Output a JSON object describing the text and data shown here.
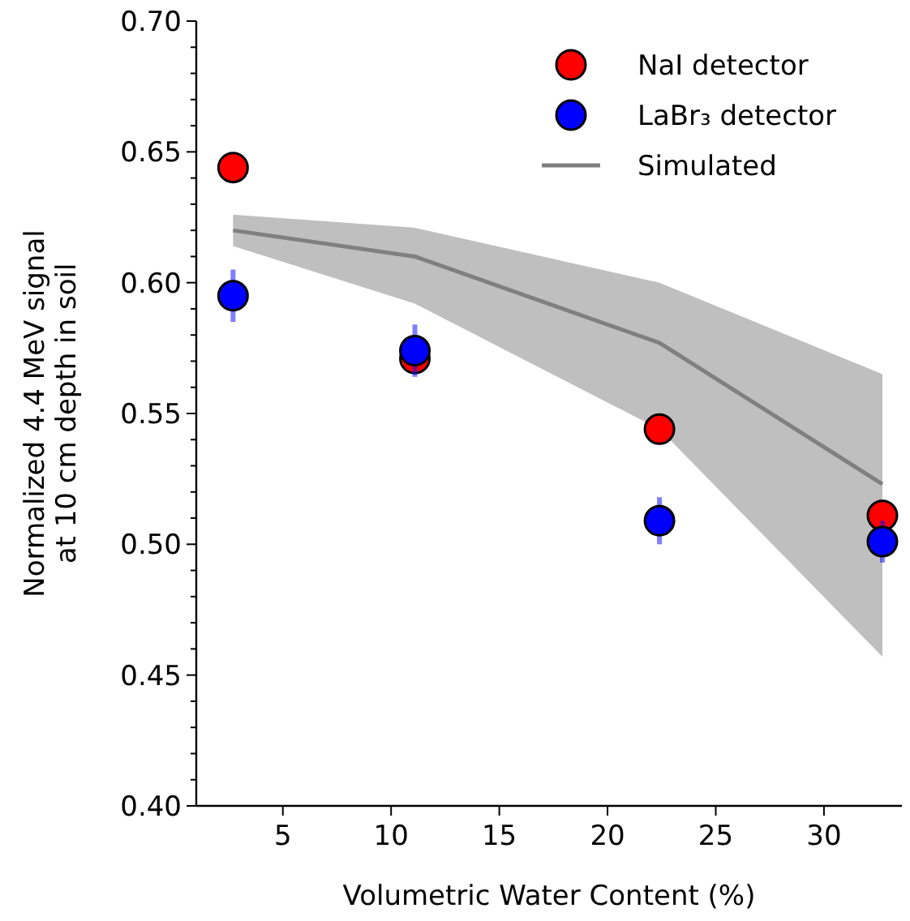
{
  "chart_data": {
    "type": "scatter",
    "xlabel": "Volumetric Water Content (%)",
    "ylabel": "Normalized 4.4 MeV signal\nat 10 cm depth in soil",
    "xlim": [
      1,
      33.6
    ],
    "ylim": [
      0.4,
      0.7
    ],
    "xticks": [
      5,
      10,
      15,
      20,
      25,
      30
    ],
    "yticks": [
      {
        "value": 0.4,
        "label": "0.40"
      },
      {
        "value": 0.41,
        "label": null
      },
      {
        "value": 0.42,
        "label": null
      },
      {
        "value": 0.43,
        "label": null
      },
      {
        "value": 0.44,
        "label": null
      },
      0.45,
      {
        "value": 0.46,
        "label": null
      },
      {
        "value": 0.47,
        "label": null
      },
      {
        "value": 0.48,
        "label": null
      },
      {
        "value": 0.49,
        "label": null
      },
      {
        "value": 0.5,
        "label": "0.50"
      },
      {
        "value": 0.51,
        "label": null
      },
      {
        "value": 0.52,
        "label": null
      },
      {
        "value": 0.53,
        "label": null
      },
      {
        "value": 0.54,
        "label": null
      },
      0.55,
      {
        "value": 0.56,
        "label": null
      },
      {
        "value": 0.57,
        "label": null
      },
      {
        "value": 0.58,
        "label": null
      },
      {
        "value": 0.59,
        "label": null
      },
      {
        "value": 0.6,
        "label": "0.60"
      },
      {
        "value": 0.61,
        "label": null
      },
      {
        "value": 0.62,
        "label": null
      },
      {
        "value": 0.63,
        "label": null
      },
      {
        "value": 0.64,
        "label": null
      },
      0.65,
      {
        "value": 0.66,
        "label": null
      },
      {
        "value": 0.67,
        "label": null
      },
      {
        "value": 0.68,
        "label": null
      },
      {
        "value": 0.69,
        "label": null
      },
      {
        "value": 0.7,
        "label": "0.70"
      }
    ],
    "legend": "top right",
    "marker": "circle",
    "grid": false,
    "series": [
      {
        "name": "NaI detector",
        "color": "#ff0000",
        "x": [
          2.7,
          11.1,
          22.4,
          32.7
        ],
        "values": [
          0.644,
          0.571,
          0.544,
          0.511
        ]
      },
      {
        "name": "LaBr₃ detector",
        "color": "#0000ff",
        "x": [
          2.7,
          11.1,
          22.4,
          32.7
        ],
        "values": [
          0.595,
          0.574,
          0.509,
          0.501
        ],
        "errors": [
          0.01,
          0.01,
          0.009,
          0.008
        ]
      },
      {
        "name": "Simulated",
        "type": "line",
        "marker": "none",
        "color": "#808080",
        "x": [
          2.7,
          11.1,
          22.4,
          32.7
        ],
        "values": [
          0.62,
          0.61,
          0.577,
          0.523
        ],
        "lower": [
          0.614,
          0.592,
          0.544,
          0.457
        ],
        "upper": [
          0.626,
          0.621,
          0.6,
          0.565
        ]
      }
    ]
  }
}
